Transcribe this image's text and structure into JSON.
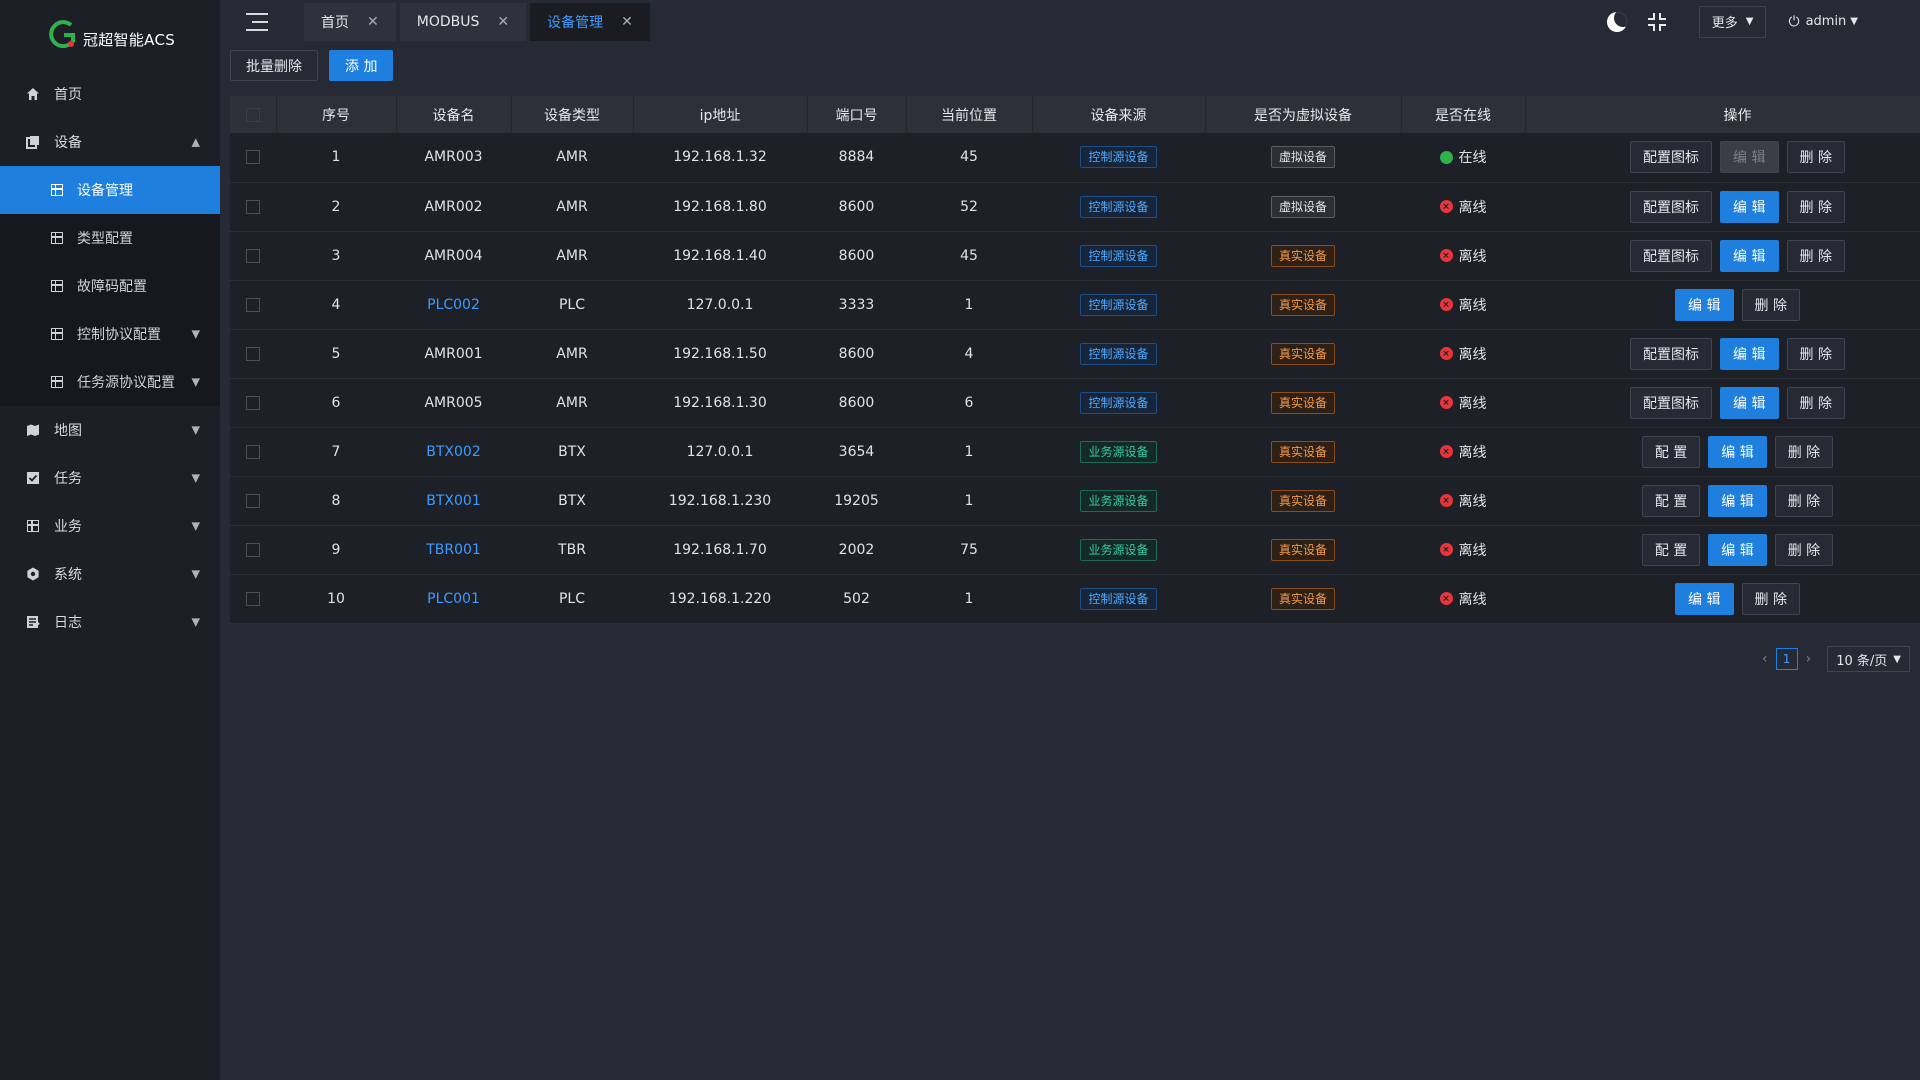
{
  "app": {
    "logo_text": "冠超智能ACS",
    "logo_letter": "G"
  },
  "sidebar": {
    "items": [
      {
        "label": "首页",
        "icon": "home-icon"
      },
      {
        "label": "设备",
        "icon": "device-icon",
        "expanded": true,
        "children": [
          {
            "label": "设备管理",
            "active": true
          },
          {
            "label": "类型配置"
          },
          {
            "label": "故障码配置"
          },
          {
            "label": "控制协议配置",
            "has_children": true
          },
          {
            "label": "任务源协议配置",
            "has_children": true
          }
        ]
      },
      {
        "label": "地图",
        "icon": "map-icon"
      },
      {
        "label": "任务",
        "icon": "task-icon"
      },
      {
        "label": "业务",
        "icon": "business-icon"
      },
      {
        "label": "系统",
        "icon": "system-icon"
      },
      {
        "label": "日志",
        "icon": "log-icon"
      }
    ]
  },
  "tabs": [
    {
      "label": "首页",
      "active": false
    },
    {
      "label": "MODBUS",
      "active": false
    },
    {
      "label": "设备管理",
      "active": true
    }
  ],
  "header": {
    "more_label": "更多",
    "user_name": "admin"
  },
  "toolbar": {
    "batch_delete": "批量删除",
    "add": "添 加"
  },
  "table": {
    "columns": [
      "序号",
      "设备名",
      "设备类型",
      "ip地址",
      "端口号",
      "当前位置",
      "设备来源",
      "是否为虚拟设备",
      "是否在线",
      "操作"
    ],
    "rows": [
      {
        "no": "1",
        "name": "AMR003",
        "link": false,
        "type": "AMR",
        "ip": "192.168.1.32",
        "port": "8884",
        "pos": "45",
        "source": "控制源设备",
        "source_kind": "ctrl",
        "virtual": "虚拟设备",
        "virtual_kind": "virt",
        "online": "在线",
        "is_online": true,
        "ops": [
          "配置图标",
          "编 辑",
          "删 除"
        ],
        "edit_disabled": true
      },
      {
        "no": "2",
        "name": "AMR002",
        "link": false,
        "type": "AMR",
        "ip": "192.168.1.80",
        "port": "8600",
        "pos": "52",
        "source": "控制源设备",
        "source_kind": "ctrl",
        "virtual": "虚拟设备",
        "virtual_kind": "virt",
        "online": "离线",
        "is_online": false,
        "ops": [
          "配置图标",
          "编 辑",
          "删 除"
        ]
      },
      {
        "no": "3",
        "name": "AMR004",
        "link": false,
        "type": "AMR",
        "ip": "192.168.1.40",
        "port": "8600",
        "pos": "45",
        "source": "控制源设备",
        "source_kind": "ctrl",
        "virtual": "真实设备",
        "virtual_kind": "real",
        "online": "离线",
        "is_online": false,
        "ops": [
          "配置图标",
          "编 辑",
          "删 除"
        ]
      },
      {
        "no": "4",
        "name": "PLC002",
        "link": true,
        "type": "PLC",
        "ip": "127.0.0.1",
        "port": "3333",
        "pos": "1",
        "source": "控制源设备",
        "source_kind": "ctrl",
        "virtual": "真实设备",
        "virtual_kind": "real",
        "online": "离线",
        "is_online": false,
        "ops": [
          "编 辑",
          "删 除"
        ]
      },
      {
        "no": "5",
        "name": "AMR001",
        "link": false,
        "type": "AMR",
        "ip": "192.168.1.50",
        "port": "8600",
        "pos": "4",
        "source": "控制源设备",
        "source_kind": "ctrl",
        "virtual": "真实设备",
        "virtual_kind": "real",
        "online": "离线",
        "is_online": false,
        "ops": [
          "配置图标",
          "编 辑",
          "删 除"
        ]
      },
      {
        "no": "6",
        "name": "AMR005",
        "link": false,
        "type": "AMR",
        "ip": "192.168.1.30",
        "port": "8600",
        "pos": "6",
        "source": "控制源设备",
        "source_kind": "ctrl",
        "virtual": "真实设备",
        "virtual_kind": "real",
        "online": "离线",
        "is_online": false,
        "ops": [
          "配置图标",
          "编 辑",
          "删 除"
        ]
      },
      {
        "no": "7",
        "name": "BTX002",
        "link": true,
        "type": "BTX",
        "ip": "127.0.0.1",
        "port": "3654",
        "pos": "1",
        "source": "业务源设备",
        "source_kind": "biz",
        "virtual": "真实设备",
        "virtual_kind": "real",
        "online": "离线",
        "is_online": false,
        "ops": [
          "配 置",
          "编 辑",
          "删 除"
        ]
      },
      {
        "no": "8",
        "name": "BTX001",
        "link": true,
        "type": "BTX",
        "ip": "192.168.1.230",
        "port": "19205",
        "pos": "1",
        "source": "业务源设备",
        "source_kind": "biz",
        "virtual": "真实设备",
        "virtual_kind": "real",
        "online": "离线",
        "is_online": false,
        "ops": [
          "配 置",
          "编 辑",
          "删 除"
        ]
      },
      {
        "no": "9",
        "name": "TBR001",
        "link": true,
        "type": "TBR",
        "ip": "192.168.1.70",
        "port": "2002",
        "pos": "75",
        "source": "业务源设备",
        "source_kind": "biz",
        "virtual": "真实设备",
        "virtual_kind": "real",
        "online": "离线",
        "is_online": false,
        "ops": [
          "配 置",
          "编 辑",
          "删 除"
        ]
      },
      {
        "no": "10",
        "name": "PLC001",
        "link": true,
        "type": "PLC",
        "ip": "192.168.1.220",
        "port": "502",
        "pos": "1",
        "source": "控制源设备",
        "source_kind": "ctrl",
        "virtual": "真实设备",
        "virtual_kind": "real",
        "online": "离线",
        "is_online": false,
        "ops": [
          "编 辑",
          "删 除"
        ]
      }
    ]
  },
  "pagination": {
    "current": "1",
    "page_size": "10 条/页"
  },
  "colors": {
    "primary": "#1f7fde",
    "online": "#2fb24b",
    "offline": "#e8353b",
    "logo_green": "#2fb24b",
    "logo_red": "#e8353b"
  }
}
